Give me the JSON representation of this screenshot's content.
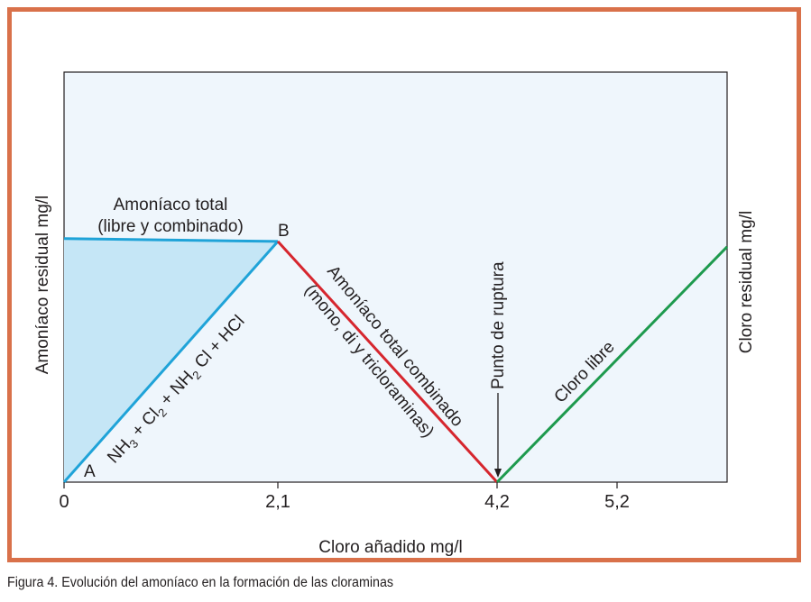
{
  "caption": "Figura 4. Evolución del amoníaco en la formación de las cloraminas",
  "colors": {
    "frame": "#D9714A",
    "plot_bg": "#EFF6FC",
    "fill_area": "#C5E6F6",
    "blue_line": "#1FA3D8",
    "red_line": "#D6262E",
    "green_line": "#1E9A4E",
    "axis": "#231f20"
  },
  "chart_data": {
    "type": "line",
    "title": "",
    "xlabel": "Cloro añadido mg/l",
    "ylabel_left": "Amoníaco residual mg/l",
    "ylabel_right": "Cloro residual mg/l",
    "xlim": [
      0,
      6.3
    ],
    "ylim": [
      0,
      1
    ],
    "x_ticks": [
      {
        "value": 0,
        "label": "0"
      },
      {
        "value": 2.1,
        "label": "2,1"
      },
      {
        "value": 4.2,
        "label": "4,2"
      },
      {
        "value": 5.2,
        "label": "5,2"
      }
    ],
    "grid": false,
    "series": [
      {
        "name": "Amoníaco total (libre y combinado)",
        "color_key": "blue_line",
        "points": [
          [
            0,
            0.594
          ],
          [
            2.1,
            0.587
          ]
        ]
      },
      {
        "name": "NH3 + Cl2 + NH2 Cl + HCl",
        "color_key": "blue_line",
        "points": [
          [
            0,
            0
          ],
          [
            2.1,
            0.587
          ]
        ]
      },
      {
        "name": "Amoníaco total combinado (mono, di y tricloraminas)",
        "color_key": "red_line",
        "points": [
          [
            2.1,
            0.587
          ],
          [
            4.2,
            0
          ]
        ]
      },
      {
        "name": "Cloro libre",
        "color_key": "green_line",
        "points": [
          [
            4.2,
            0
          ],
          [
            6.3,
            0.574
          ]
        ]
      }
    ],
    "shaded_region": {
      "points": [
        [
          0,
          0
        ],
        [
          0,
          0.594
        ],
        [
          2.1,
          0.587
        ]
      ]
    },
    "annotations": {
      "point_a": "A",
      "point_b": "B",
      "top_label_line1": "Amoníaco total",
      "top_label_line2": "(libre y combinado)",
      "formula": {
        "nh": "NH",
        "sub3": "3",
        "plus_cl": " + Cl",
        "sub2a": "2",
        "plus_nh": " + NH",
        "sub2b": "2",
        "rest": " Cl + HCl"
      },
      "red_label_line1": "Amoníaco total combinado",
      "red_label_line2": "(mono, di y tricloraminas)",
      "breakpoint": "Punto de ruptura",
      "green_label": "Cloro libre"
    }
  }
}
